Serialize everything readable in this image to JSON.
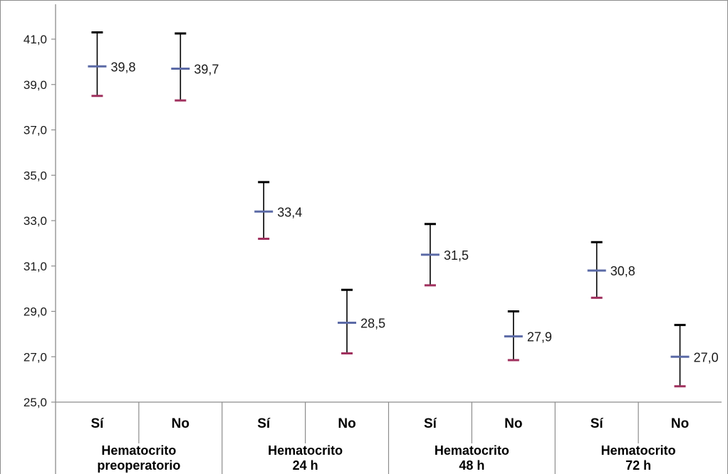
{
  "chart_data": {
    "type": "stock",
    "y_ticks": [
      "41,0",
      "39,0",
      "37,0",
      "35,0",
      "33,0",
      "31,0",
      "29,0",
      "27,0",
      "25,0"
    ],
    "ylim": [
      25,
      42
    ],
    "groups": [
      {
        "label_lines": [
          "Hematocrito",
          "preoperatorio"
        ],
        "items": [
          {
            "sub": "Sí",
            "mean": 39.8,
            "high": 41.3,
            "low": 38.5,
            "label": "39,8"
          },
          {
            "sub": "No",
            "mean": 39.7,
            "high": 41.25,
            "low": 38.3,
            "label": "39,7"
          }
        ]
      },
      {
        "label_lines": [
          "Hematocrito",
          "24 h"
        ],
        "items": [
          {
            "sub": "Sí",
            "mean": 33.4,
            "high": 34.7,
            "low": 32.2,
            "label": "33,4"
          },
          {
            "sub": "No",
            "mean": 28.5,
            "high": 29.95,
            "low": 27.15,
            "label": "28,5"
          }
        ]
      },
      {
        "label_lines": [
          "Hematocrito",
          "48 h"
        ],
        "items": [
          {
            "sub": "Sí",
            "mean": 31.5,
            "high": 32.85,
            "low": 30.15,
            "label": "31,5"
          },
          {
            "sub": "No",
            "mean": 27.9,
            "high": 29.0,
            "low": 26.85,
            "label": "27,9"
          }
        ]
      },
      {
        "label_lines": [
          "Hematocrito",
          "72 h"
        ],
        "items": [
          {
            "sub": "Sí",
            "mean": 30.8,
            "high": 32.05,
            "low": 29.6,
            "label": "30,8"
          },
          {
            "sub": "No",
            "mean": 27.0,
            "high": 28.4,
            "low": 25.7,
            "label": "27,0"
          }
        ]
      }
    ],
    "grid": false,
    "colors": {
      "high_cap": "#000000",
      "mean_marker": "#5b6aa6",
      "low_cap": "#a0305e",
      "whisker": "#000000",
      "axis": "#8c8c8c",
      "border": "#8c8c8c"
    }
  }
}
